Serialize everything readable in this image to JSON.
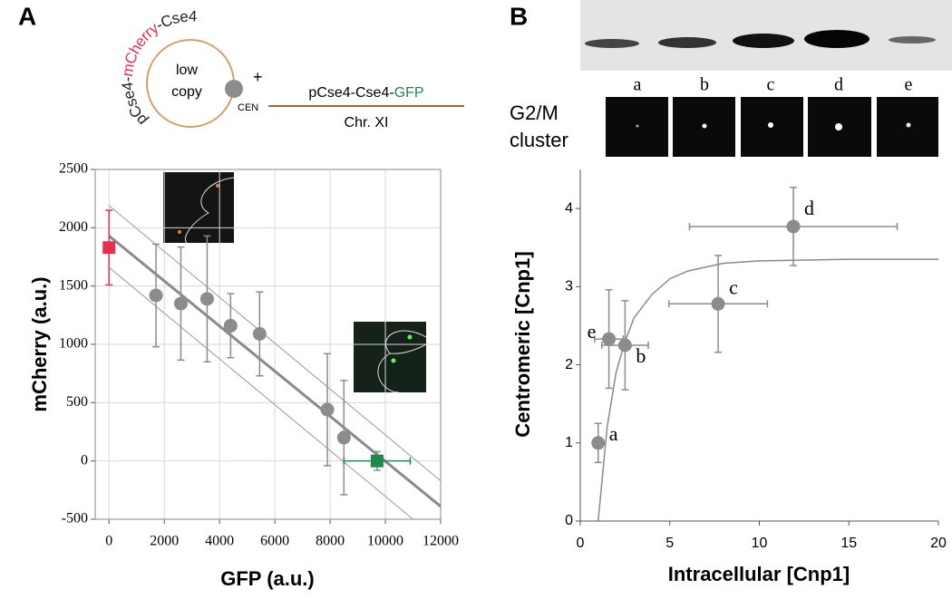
{
  "panels": [
    "A",
    "B"
  ],
  "diagram": {
    "plasmid_label": [
      "pCse4-",
      "mCherry",
      "-Cse4"
    ],
    "plasmid_text": [
      "low",
      "copy"
    ],
    "cen": "CEN",
    "plus": "+",
    "construct": [
      "pCse4-Cse4-",
      "GFP"
    ],
    "chromosome": "Chr. XI"
  },
  "images": {
    "labels": [
      "a",
      "b",
      "c",
      "d",
      "e"
    ],
    "row_label": [
      "G2/M",
      "cluster"
    ]
  },
  "chart_data": [
    {
      "type": "scatter",
      "xlabel": "GFP (a.u.)",
      "ylabel": "mCherry (a.u.)",
      "xlim": [
        -500,
        12000
      ],
      "ylim": [
        -500,
        2500
      ],
      "xticks": [
        0,
        2000,
        4000,
        6000,
        8000,
        10000,
        12000
      ],
      "yticks": [
        -500,
        0,
        500,
        1000,
        1500,
        2000,
        2500
      ],
      "grid": true,
      "series": [
        {
          "color": "#8c8c8c",
          "marker": "circle",
          "x": [
            1700,
            2600,
            3550,
            4400,
            5450,
            7900,
            8500
          ],
          "values": [
            1420,
            1350,
            1390,
            1160,
            1090,
            440,
            200
          ],
          "yerr": [
            440,
            485,
            540,
            275,
            360,
            480,
            490
          ],
          "xerr": [
            150,
            150,
            150,
            150,
            150,
            150,
            150
          ]
        },
        {
          "color": "#e3324e",
          "marker": "square",
          "x": [
            0
          ],
          "values": [
            1830
          ],
          "yerr": [
            320
          ]
        },
        {
          "color": "#1e8a4a",
          "marker": "square",
          "x": [
            9700
          ],
          "values": [
            0
          ],
          "yerr": [
            80
          ],
          "xerr": [
            1200
          ]
        }
      ],
      "lines": [
        {
          "color": "#8a8a8a",
          "width": 3,
          "x": [
            0,
            12000
          ],
          "values": [
            1930,
            -390
          ]
        },
        {
          "color": "#9a9a9a",
          "width": 1,
          "x": [
            0,
            12000
          ],
          "values": [
            2190,
            -170
          ]
        },
        {
          "color": "#9a9a9a",
          "width": 1,
          "x": [
            0,
            11000
          ],
          "values": [
            1660,
            -500
          ]
        }
      ]
    },
    {
      "type": "scatter",
      "xlabel": "Intracellular [Cnp1]",
      "ylabel": "Centromeric [Cnp1]",
      "xlim": [
        0,
        20
      ],
      "ylim": [
        0,
        4.5
      ],
      "xticks": [
        0,
        5,
        10,
        15,
        20
      ],
      "yticks": [
        0,
        1,
        2,
        3,
        4
      ],
      "grid": false,
      "series": [
        {
          "color": "#8c8c8c",
          "marker": "circle",
          "x": [
            1,
            1.6,
            2.5,
            7.7,
            11.9
          ],
          "values": [
            1,
            2.33,
            2.25,
            2.78,
            3.77
          ],
          "yerr": [
            0.25,
            0.63,
            0.57,
            0.62,
            0.5
          ],
          "xerr": [
            null,
            0.8,
            1.3,
            2.75,
            5.8
          ],
          "point_labels": [
            "a",
            "e",
            "b",
            "c",
            "d"
          ]
        }
      ],
      "lines": [
        {
          "color": "#8a8a8a",
          "width": 1.5,
          "x": [
            1,
            1.5,
            2,
            2.5,
            3,
            4,
            5,
            6,
            8,
            10,
            15,
            20
          ],
          "values": [
            0,
            1.2,
            1.9,
            2.3,
            2.6,
            2.9,
            3.1,
            3.2,
            3.3,
            3.33,
            3.35,
            3.35
          ]
        }
      ]
    }
  ]
}
